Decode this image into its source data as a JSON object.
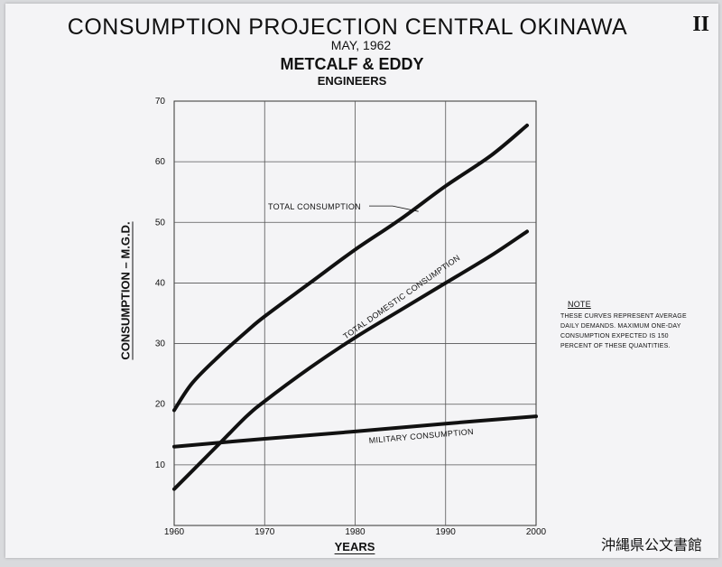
{
  "plate_number": "II",
  "archive_mark": "沖縄県公文書館",
  "note": {
    "title": "NOTE",
    "text": "THESE CURVES REPRESENT AVERAGE\nDAILY DEMANDS. MAXIMUM ONE-DAY\nCONSUMPTION EXPECTED IS 150\nPERCENT OF THESE QUANTITIES."
  },
  "chart_data": {
    "type": "line",
    "title": "CONSUMPTION PROJECTION CENTRAL OKINAWA",
    "subtitle_date": "MAY, 1962",
    "subtitle_firm": "METCALF & EDDY",
    "subtitle_engineers": "ENGINEERS",
    "xlabel": "YEARS",
    "ylabel": "CONSUMPTION – M.G.D.",
    "xlim": [
      1960,
      2000
    ],
    "ylim": [
      0,
      70
    ],
    "x_ticks": [
      1960,
      1970,
      1980,
      1990,
      2000
    ],
    "x_tick_labels": [
      "1960",
      "1970",
      "1980",
      "1990",
      "2000"
    ],
    "y_ticks": [
      10,
      20,
      30,
      40,
      50,
      60,
      70
    ],
    "y_tick_labels": [
      "10",
      "20",
      "30",
      "40",
      "50",
      "60",
      "70"
    ],
    "grid": true,
    "series": [
      {
        "name": "TOTAL CONSUMPTION",
        "color": "#111111",
        "x": [
          1960,
          1962,
          1965,
          1968,
          1970,
          1975,
          1980,
          1985,
          1990,
          1995,
          1999
        ],
        "y": [
          19,
          23.5,
          28,
          32,
          34.5,
          40,
          45.5,
          50.5,
          56,
          61,
          66
        ]
      },
      {
        "name": "TOTAL DOMESTIC CONSUMPTION",
        "color": "#111111",
        "x": [
          1960,
          1962,
          1965,
          1968,
          1970,
          1975,
          1980,
          1985,
          1990,
          1995,
          1999
        ],
        "y": [
          6,
          9,
          13.5,
          18,
          20.5,
          26,
          31,
          35.5,
          40,
          44.5,
          48.5
        ]
      },
      {
        "name": "MILITARY CONSUMPTION",
        "color": "#111111",
        "x": [
          1960,
          1970,
          1980,
          1990,
          2000
        ],
        "y": [
          13,
          14.3,
          15.5,
          16.8,
          18
        ]
      }
    ]
  }
}
